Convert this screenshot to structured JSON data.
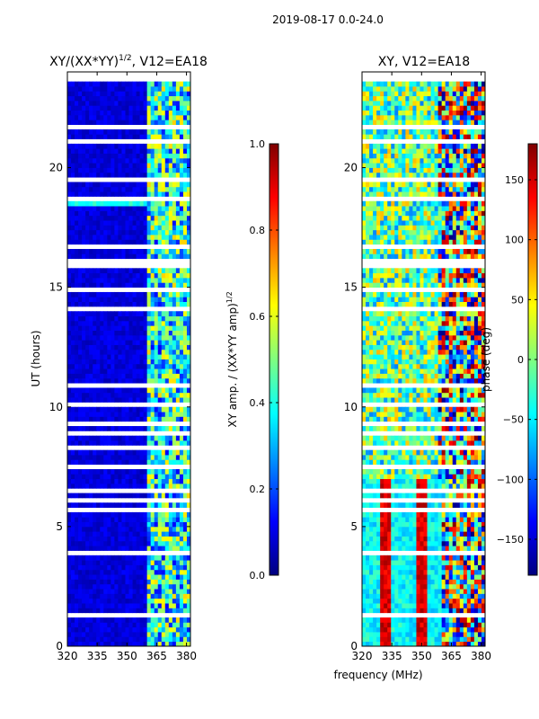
{
  "suptitle": "2019-08-17 0.0-24.0",
  "chart_data": [
    {
      "type": "heatmap",
      "title_base": "XY/(XX*YY)",
      "title_sup": "1/2",
      "title_tail": ", V12=EA18",
      "xlabel": "",
      "ylabel": "UT (hours)",
      "xlim": [
        320,
        382
      ],
      "ylim": [
        0,
        24
      ],
      "xticks": [
        320,
        335,
        350,
        365,
        380
      ],
      "yticks": [
        0,
        5,
        10,
        15,
        20
      ],
      "colorbar": {
        "label_base": "XY amp. / (XX*YY amp)",
        "label_sup": "1/2",
        "range": [
          0.0,
          1.0
        ],
        "ticks": [
          "0.0",
          "0.2",
          "0.4",
          "0.6",
          "0.8",
          "1.0"
        ],
        "tick_values": [
          0.0,
          0.2,
          0.4,
          0.6,
          0.8,
          1.0
        ]
      }
    },
    {
      "type": "heatmap",
      "title": "XY, V12=EA18",
      "xlabel": "frequency (MHz)",
      "ylabel": "",
      "xlim": [
        320,
        382
      ],
      "ylim": [
        0,
        24
      ],
      "xticks": [
        320,
        335,
        350,
        365,
        380
      ],
      "yticks": [
        0,
        5,
        10,
        15,
        20
      ],
      "colorbar": {
        "label": "phase (deg)",
        "range": [
          -180,
          180
        ],
        "ticks": [
          "150",
          "100",
          "50",
          "0",
          "−50",
          "−100",
          "−150"
        ],
        "tick_values": [
          150,
          100,
          50,
          0,
          -50,
          -100,
          -150
        ]
      }
    }
  ]
}
